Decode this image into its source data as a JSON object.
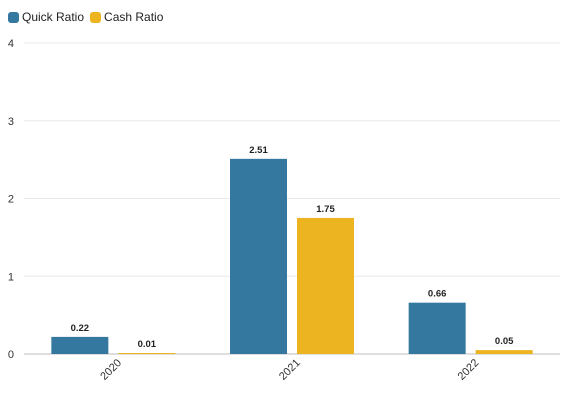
{
  "chart_data": {
    "type": "bar",
    "categories": [
      "2020",
      "2021",
      "2022"
    ],
    "series": [
      {
        "name": "Quick Ratio",
        "color": "#34779f",
        "values": [
          0.22,
          2.51,
          0.66
        ],
        "labels": [
          "0.22",
          "2.51",
          "0.66"
        ]
      },
      {
        "name": "Cash Ratio",
        "color": "#edb422",
        "values": [
          0.01,
          1.75,
          0.05
        ],
        "labels": [
          "0.01",
          "1.75",
          "0.05"
        ]
      }
    ],
    "ylim": [
      0,
      4
    ],
    "yticks": [
      0,
      1,
      2,
      3,
      4
    ],
    "ytick_labels": [
      "0",
      "1",
      "2",
      "3",
      "4"
    ],
    "grid": true,
    "legend_position": "top-left",
    "xlabel": "",
    "ylabel": ""
  }
}
